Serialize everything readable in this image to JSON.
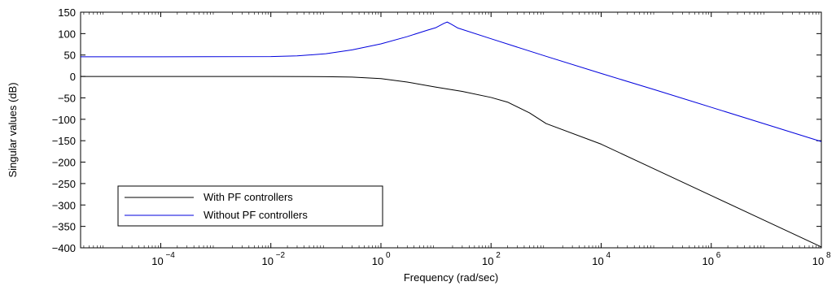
{
  "chart_data": {
    "type": "line",
    "title": "",
    "xlabel": "Frequency  (rad/sec)",
    "ylabel": "Singular values (dB)",
    "xscale": "log",
    "xlim": [
      3.5e-06,
      100000000
    ],
    "ylim": [
      -400,
      150
    ],
    "grid": false,
    "legend_position": "bottom-left",
    "x_ticks": [
      {
        "value": 0.0001,
        "base": "10",
        "exp": "−4"
      },
      {
        "value": 0.01,
        "base": "10",
        "exp": "−2"
      },
      {
        "value": 1,
        "base": "10",
        "exp": "0"
      },
      {
        "value": 100,
        "base": "10",
        "exp": "2"
      },
      {
        "value": 10000,
        "base": "10",
        "exp": "4"
      },
      {
        "value": 1000000,
        "base": "10",
        "exp": "6"
      },
      {
        "value": 100000000,
        "base": "10",
        "exp": "8"
      }
    ],
    "y_ticks": [
      {
        "value": 150,
        "label": "150"
      },
      {
        "value": 100,
        "label": "100"
      },
      {
        "value": 50,
        "label": "50"
      },
      {
        "value": 0,
        "label": "0"
      },
      {
        "value": -50,
        "label": "−50"
      },
      {
        "value": -100,
        "label": "−100"
      },
      {
        "value": -150,
        "label": "−150"
      },
      {
        "value": -200,
        "label": "−200"
      },
      {
        "value": -250,
        "label": "−250"
      },
      {
        "value": -300,
        "label": "−300"
      },
      {
        "value": -350,
        "label": "−350"
      },
      {
        "value": -400,
        "label": "−400"
      }
    ],
    "series": [
      {
        "name": "With PF controllers",
        "color": "#000000",
        "points": [
          [
            3.5e-06,
            0
          ],
          [
            0.0001,
            0
          ],
          [
            0.01,
            0
          ],
          [
            0.1,
            -0.5
          ],
          [
            0.3,
            -1.5
          ],
          [
            1,
            -5
          ],
          [
            3,
            -13
          ],
          [
            10,
            -25
          ],
          [
            30,
            -35
          ],
          [
            100,
            -49
          ],
          [
            200,
            -60
          ],
          [
            500,
            -85
          ],
          [
            1000,
            -110
          ],
          [
            10000,
            -158
          ],
          [
            100000,
            -218
          ],
          [
            1000000,
            -278
          ],
          [
            10000000,
            -338
          ],
          [
            100000000,
            -398
          ]
        ]
      },
      {
        "name": "Without PF controllers",
        "color": "#0000dd",
        "points": [
          [
            3.5e-06,
            46
          ],
          [
            0.0001,
            46
          ],
          [
            0.01,
            46.5
          ],
          [
            0.03,
            48
          ],
          [
            0.1,
            53
          ],
          [
            0.3,
            62
          ],
          [
            1,
            76
          ],
          [
            3,
            93
          ],
          [
            7,
            108
          ],
          [
            10,
            114
          ],
          [
            14,
            124
          ],
          [
            16,
            127
          ],
          [
            19,
            122
          ],
          [
            25,
            113
          ],
          [
            100,
            88
          ],
          [
            1000,
            47
          ],
          [
            10000,
            7
          ],
          [
            100000,
            -32
          ],
          [
            1000000,
            -72
          ],
          [
            10000000,
            -112
          ],
          [
            100000000,
            -152
          ]
        ]
      }
    ]
  }
}
